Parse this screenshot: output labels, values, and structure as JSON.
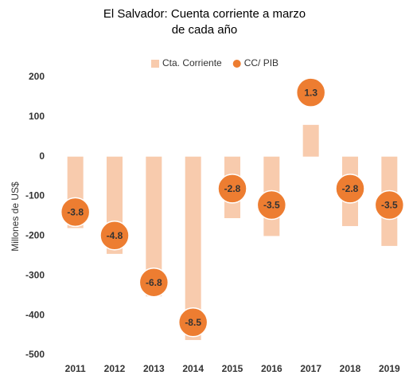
{
  "chart_data": {
    "type": "bar",
    "title": "El Salvador: Cuenta corriente a marzo de cada año",
    "y_label": "Millones de US$",
    "categories": [
      "2011",
      "2012",
      "2013",
      "2014",
      "2015",
      "2016",
      "2017",
      "2018",
      "2019"
    ],
    "series": [
      {
        "name": "Cta. Corriente",
        "color": "#f8cbad",
        "type": "bar",
        "values": [
          -180,
          -245,
          -352,
          -462,
          -155,
          -200,
          80,
          -175,
          -225
        ]
      },
      {
        "name": "CC/ PIB",
        "color": "#ed7d31",
        "type": "bubble",
        "axis": "y2",
        "values": [
          -3.8,
          -4.8,
          -6.8,
          -8.5,
          -2.8,
          -3.5,
          1.3,
          -2.8,
          -3.5
        ]
      }
    ],
    "ylim": [
      -500,
      200
    ],
    "yticks": [
      -500,
      -400,
      -300,
      -200,
      -100,
      0,
      100,
      200
    ],
    "y2lim": [
      -9.9,
      1.95
    ],
    "grid": false,
    "legend": "top"
  }
}
